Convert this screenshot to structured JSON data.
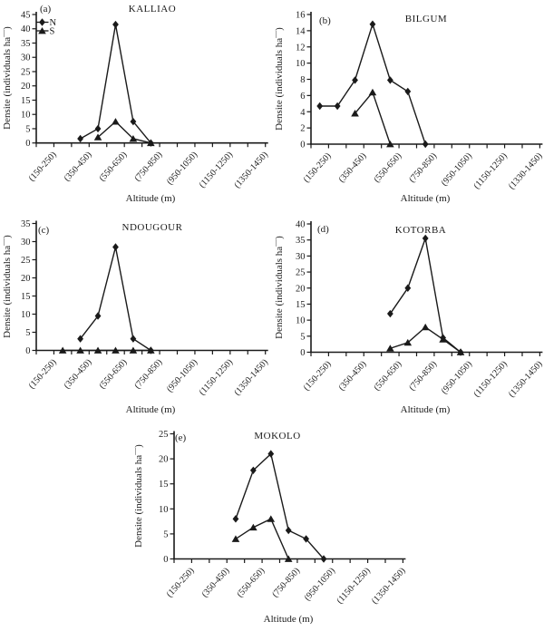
{
  "figure": {
    "x_axis_title": "Altitude (m)",
    "y_axis_title": {
      "pre": "Densite (individuals ha",
      "sup": "—",
      "post": ")"
    },
    "legend": [
      {
        "label": "N",
        "marker": "diamond"
      },
      {
        "label": "S",
        "marker": "triangle"
      }
    ],
    "colors": {
      "line": "#1a1a1a",
      "text": "#1a1a1a",
      "background": "#ffffff"
    }
  },
  "chart_data": [
    {
      "type": "line",
      "panel": "(a)",
      "title": "KALLIAO",
      "xlabel": "Altitude (m)",
      "ylabel": "Densite (individuals ha—)",
      "ylim": [
        0,
        45
      ],
      "yticks": [
        0,
        5,
        10,
        15,
        20,
        25,
        30,
        35,
        40,
        45
      ],
      "n_slots": 13,
      "label_slots": [
        0,
        2,
        4,
        6,
        8,
        10,
        12
      ],
      "x_tick_labels": [
        "(150-250)",
        "(350-450)",
        "(550-650)",
        "(750-850)",
        "(950-1050)",
        "(1150-1250)",
        "(1350-1450)"
      ],
      "series": [
        {
          "name": "N",
          "marker": "diamond",
          "slots": [
            2,
            3,
            4,
            5,
            6
          ],
          "values": [
            1.5,
            5,
            41.5,
            7.5,
            0
          ]
        },
        {
          "name": "S",
          "marker": "triangle",
          "slots": [
            3,
            4,
            5,
            6
          ],
          "values": [
            2,
            7.5,
            1.5,
            0
          ]
        }
      ],
      "has_legend": true
    },
    {
      "type": "line",
      "panel": "(b)",
      "title": "BILGUM",
      "xlabel": "Altitude (m)",
      "ylabel": "Densite (individuals ha—)",
      "ylim": [
        0,
        16
      ],
      "yticks": [
        0,
        2,
        4,
        6,
        8,
        10,
        12,
        14,
        16
      ],
      "n_slots": 13,
      "label_slots": [
        0,
        2,
        4,
        6,
        8,
        10,
        12
      ],
      "x_tick_labels": [
        "(150-250)",
        "(350-450)",
        "(550-650)",
        "(750-850)",
        "(950-1050)",
        "(1150-1250)",
        "(1330-1450)"
      ],
      "series": [
        {
          "name": "N",
          "marker": "diamond",
          "slots": [
            0,
            1,
            2,
            3,
            4,
            5,
            6
          ],
          "values": [
            4.7,
            4.7,
            7.9,
            14.8,
            7.9,
            6.5,
            0
          ]
        },
        {
          "name": "S",
          "marker": "triangle",
          "slots": [
            2,
            3,
            4
          ],
          "values": [
            3.8,
            6.4,
            0
          ]
        }
      ],
      "has_legend": false
    },
    {
      "type": "line",
      "panel": "(c)",
      "title": "NDOUGOUR",
      "xlabel": "Altitude (m)",
      "ylabel": "Densite (individuals ha—)",
      "ylim": [
        0,
        35
      ],
      "yticks": [
        0,
        5,
        10,
        15,
        20,
        25,
        30,
        35
      ],
      "n_slots": 13,
      "label_slots": [
        0,
        2,
        4,
        6,
        8,
        10,
        12
      ],
      "x_tick_labels": [
        "(150-250)",
        "(350-450)",
        "(550-650)",
        "(750-850)",
        "(950-1050)",
        "(1150-1250)",
        "(1350-1450)"
      ],
      "series": [
        {
          "name": "N",
          "marker": "diamond",
          "slots": [
            2,
            3,
            4,
            5,
            6
          ],
          "values": [
            3.2,
            9.5,
            28.5,
            3.2,
            0
          ]
        },
        {
          "name": "S",
          "marker": "triangle",
          "slots": [
            1,
            2,
            3,
            4,
            5,
            6
          ],
          "values": [
            0,
            0,
            0,
            0,
            0,
            0
          ]
        }
      ],
      "has_legend": false
    },
    {
      "type": "line",
      "panel": "(d)",
      "title": "KOTORBA",
      "xlabel": "Altitude (m)",
      "ylabel": "Densite (individuals ha—)",
      "ylim": [
        0,
        40
      ],
      "yticks": [
        0,
        5,
        10,
        15,
        20,
        25,
        30,
        35,
        40
      ],
      "n_slots": 13,
      "label_slots": [
        0,
        2,
        4,
        6,
        8,
        10,
        12
      ],
      "x_tick_labels": [
        "(150-250)",
        "(350-450)",
        "(550-650)",
        "(750-850)",
        "(950-1050)",
        "(1150-1250)",
        "(1350-1450)"
      ],
      "series": [
        {
          "name": "N",
          "marker": "diamond",
          "slots": [
            4,
            5,
            6,
            7,
            8
          ],
          "values": [
            12,
            20,
            35.5,
            4.5,
            0
          ]
        },
        {
          "name": "S",
          "marker": "triangle",
          "slots": [
            4,
            5,
            6,
            7,
            8
          ],
          "values": [
            1.2,
            3,
            7.8,
            4,
            0
          ]
        }
      ],
      "has_legend": false
    },
    {
      "type": "line",
      "panel": "(e)",
      "title": "MOKOLO",
      "xlabel": "Altitude (m)",
      "ylabel": "Densite (individuals ha—)",
      "ylim": [
        0,
        25
      ],
      "yticks": [
        0,
        5,
        10,
        15,
        20,
        25
      ],
      "n_slots": 13,
      "label_slots": [
        0,
        2,
        4,
        6,
        8,
        10,
        12
      ],
      "x_tick_labels": [
        "(150-250)",
        "(350-450)",
        "(550-650)",
        "(750-850)",
        "(950-1050)",
        "(1150-1250)",
        "(1350-1450)"
      ],
      "series": [
        {
          "name": "N",
          "marker": "diamond",
          "slots": [
            3,
            4,
            5,
            6,
            7,
            8
          ],
          "values": [
            8,
            17.7,
            21,
            5.7,
            4,
            0
          ]
        },
        {
          "name": "S",
          "marker": "triangle",
          "slots": [
            3,
            4,
            5,
            6
          ],
          "values": [
            4,
            6.3,
            8,
            0
          ]
        }
      ],
      "has_legend": false
    }
  ]
}
